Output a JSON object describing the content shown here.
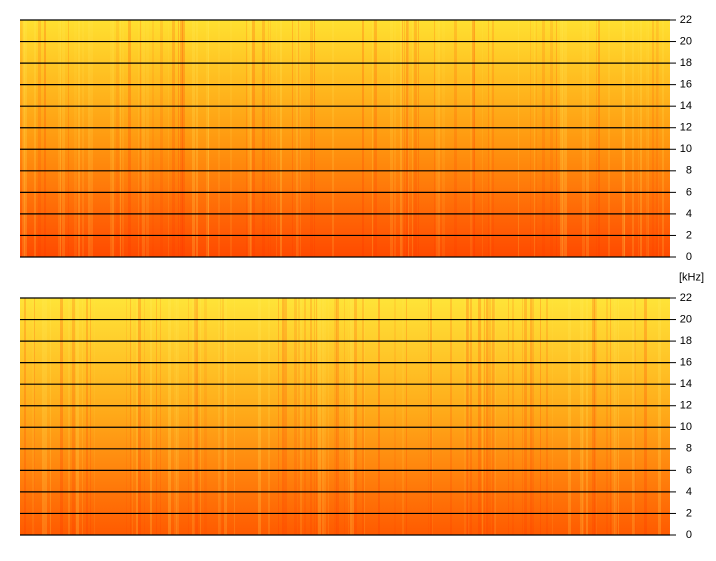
{
  "chart_data": [
    {
      "type": "spectrogram",
      "ylabel": "[kHz]",
      "ylim": [
        0,
        22
      ],
      "yticks": [
        0,
        2,
        4,
        6,
        8,
        10,
        12,
        14,
        16,
        18,
        20,
        22
      ],
      "grid": true,
      "colors": [
        "#ff4a00",
        "#ff9a10",
        "#ffe030"
      ]
    },
    {
      "type": "spectrogram",
      "ylim": [
        0,
        22
      ],
      "yticks": [
        0,
        2,
        4,
        6,
        8,
        10,
        12,
        14,
        16,
        18,
        20,
        22
      ],
      "grid": true,
      "colors": [
        "#ff5a00",
        "#ffa818",
        "#ffe438"
      ]
    }
  ]
}
